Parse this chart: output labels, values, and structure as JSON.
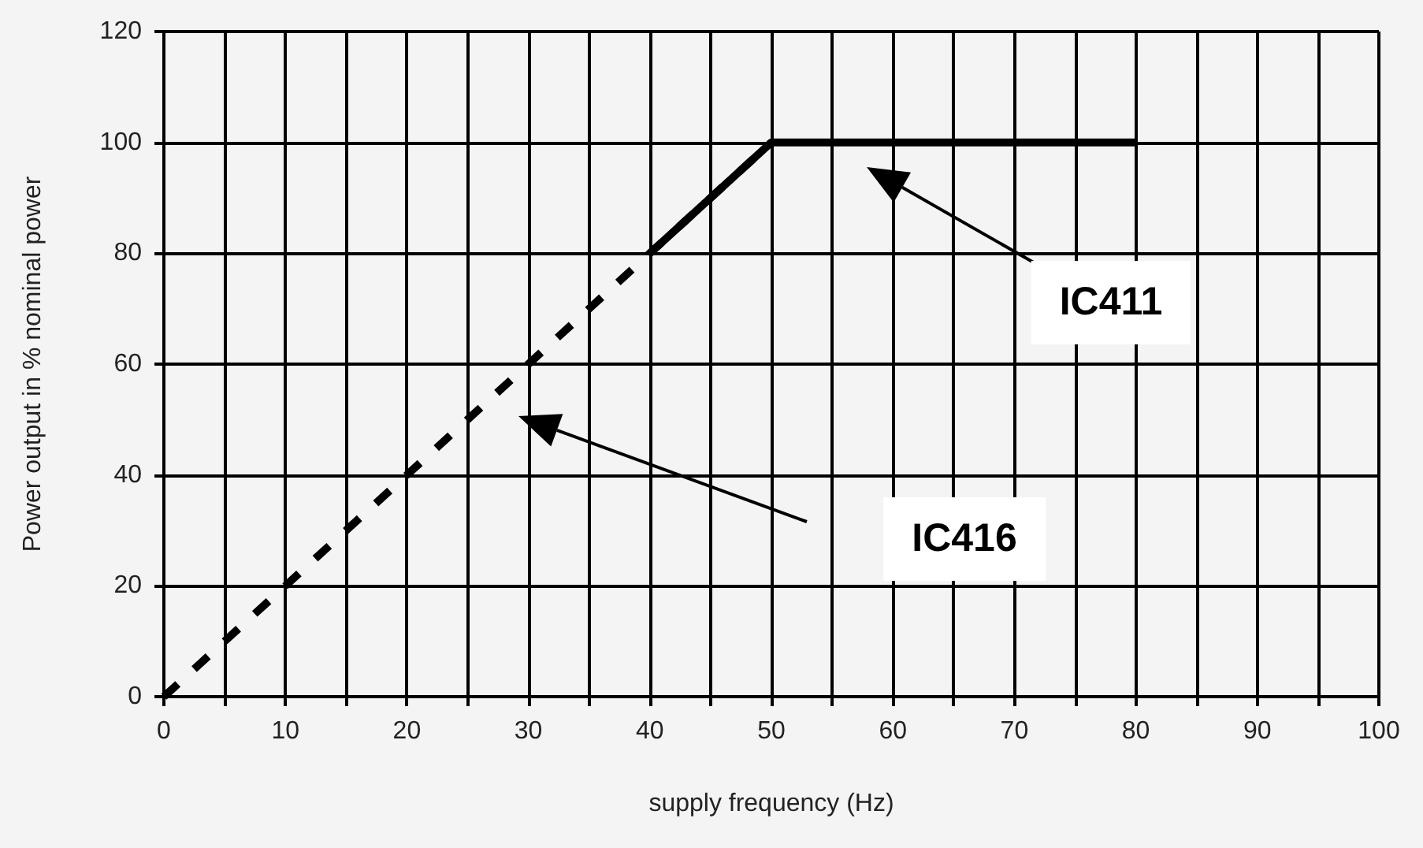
{
  "chart_data": {
    "type": "line",
    "xlabel": "supply frequency (Hz)",
    "ylabel": "Power output in % nominal power",
    "series": [
      {
        "color": "#000000",
        "line_style": "dashed",
        "x": [
          0,
          10,
          20,
          30,
          40,
          50
        ],
        "values": [
          0,
          20,
          40,
          60,
          80,
          100
        ]
      },
      {
        "color": "#000000",
        "line_style": "solid",
        "x": [
          40,
          50,
          80
        ],
        "values": [
          80,
          100,
          100
        ]
      }
    ],
    "annotations": [
      "IC411",
      "IC416"
    ],
    "xlim": [
      0,
      100
    ],
    "ylim": [
      0,
      120
    ],
    "xticks": [
      0,
      {
        "value": 5,
        "label": null
      },
      10,
      {
        "value": 15,
        "label": null
      },
      20,
      {
        "value": 25,
        "label": null
      },
      30,
      {
        "value": 35,
        "label": null
      },
      40,
      {
        "value": 45,
        "label": null
      },
      50,
      {
        "value": 55,
        "label": null
      },
      60,
      {
        "value": 65,
        "label": null
      },
      70,
      {
        "value": 75,
        "label": null
      },
      80,
      {
        "value": 85,
        "label": null
      },
      90,
      {
        "value": 95,
        "label": null
      },
      100
    ],
    "yticks": [
      0,
      20,
      40,
      60,
      80,
      100,
      120
    ],
    "grid": true,
    "marker": "none"
  }
}
